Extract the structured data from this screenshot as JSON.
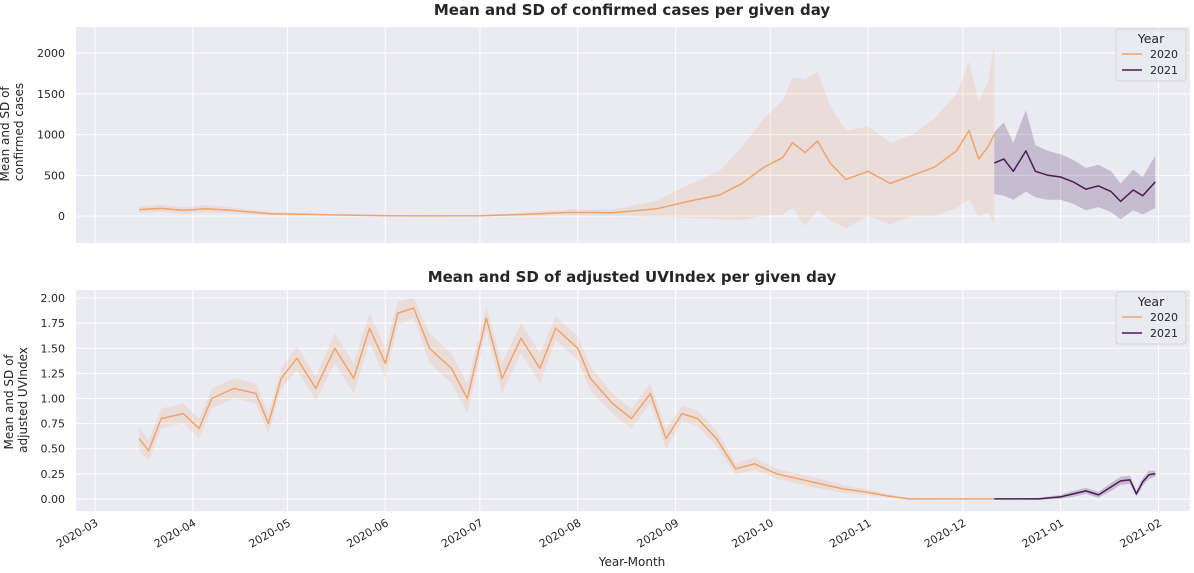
{
  "colors": {
    "y2020": "#f0a46c",
    "y2021": "#4b1d54",
    "axes_bg": "#eaeaf2",
    "grid": "#ffffff"
  },
  "xlabel": "Year-Month",
  "x_ticks": [
    "2020-03",
    "2020-04",
    "2020-05",
    "2020-06",
    "2020-07",
    "2020-08",
    "2020-09",
    "2020-10",
    "2020-11",
    "2020-12",
    "2021-01",
    "2021-02"
  ],
  "chart_data": [
    {
      "type": "line",
      "title": "Mean and SD of confirmed cases per given day",
      "ylabel": [
        "Mean and SD of",
        "confirmed cases"
      ],
      "ylim": [
        -330,
        2320
      ],
      "y_ticks": [
        "0",
        "500",
        "1000",
        "1500",
        "2000"
      ],
      "y_tick_values": [
        0,
        500,
        1000,
        1500,
        2000
      ],
      "xlim": [
        "2020-02-24",
        "2021-02-11"
      ],
      "grid": true,
      "legend": {
        "title": "Year",
        "placement": "top-right",
        "entries": [
          "2020",
          "2021"
        ]
      },
      "series": [
        {
          "name": "2020",
          "points": [
            {
              "x": "2020-03-15",
              "y": 80,
              "sd": 40
            },
            {
              "x": "2020-03-22",
              "y": 95,
              "sd": 45
            },
            {
              "x": "2020-03-29",
              "y": 70,
              "sd": 40
            },
            {
              "x": "2020-04-05",
              "y": 90,
              "sd": 45
            },
            {
              "x": "2020-04-12",
              "y": 75,
              "sd": 40
            },
            {
              "x": "2020-04-19",
              "y": 50,
              "sd": 30
            },
            {
              "x": "2020-04-26",
              "y": 30,
              "sd": 20
            },
            {
              "x": "2020-05-03",
              "y": 25,
              "sd": 15
            },
            {
              "x": "2020-05-15",
              "y": 15,
              "sd": 10
            },
            {
              "x": "2020-06-01",
              "y": 5,
              "sd": 8
            },
            {
              "x": "2020-06-15",
              "y": 3,
              "sd": 5
            },
            {
              "x": "2020-07-01",
              "y": 5,
              "sd": 8
            },
            {
              "x": "2020-07-15",
              "y": 20,
              "sd": 25
            },
            {
              "x": "2020-07-29",
              "y": 45,
              "sd": 40
            },
            {
              "x": "2020-08-12",
              "y": 40,
              "sd": 40
            },
            {
              "x": "2020-08-26",
              "y": 90,
              "sd": 100
            },
            {
              "x": "2020-09-05",
              "y": 180,
              "sd": 200
            },
            {
              "x": "2020-09-15",
              "y": 260,
              "sd": 300
            },
            {
              "x": "2020-09-22",
              "y": 400,
              "sd": 450
            },
            {
              "x": "2020-09-29",
              "y": 600,
              "sd": 600
            },
            {
              "x": "2020-10-05",
              "y": 720,
              "sd": 700
            },
            {
              "x": "2020-10-08",
              "y": 900,
              "sd": 800
            },
            {
              "x": "2020-10-12",
              "y": 780,
              "sd": 900
            },
            {
              "x": "2020-10-16",
              "y": 920,
              "sd": 850
            },
            {
              "x": "2020-10-20",
              "y": 650,
              "sd": 700
            },
            {
              "x": "2020-10-25",
              "y": 450,
              "sd": 600
            },
            {
              "x": "2020-11-01",
              "y": 550,
              "sd": 550
            },
            {
              "x": "2020-11-08",
              "y": 400,
              "sd": 500
            },
            {
              "x": "2020-11-15",
              "y": 500,
              "sd": 500
            },
            {
              "x": "2020-11-22",
              "y": 600,
              "sd": 600
            },
            {
              "x": "2020-11-29",
              "y": 800,
              "sd": 700
            },
            {
              "x": "2020-12-03",
              "y": 1050,
              "sd": 850
            },
            {
              "x": "2020-12-06",
              "y": 700,
              "sd": 700
            },
            {
              "x": "2020-12-09",
              "y": 850,
              "sd": 800
            },
            {
              "x": "2020-12-11",
              "y": 1000,
              "sd": 1100
            }
          ]
        },
        {
          "name": "2021",
          "points": [
            {
              "x": "2020-12-11",
              "y": 650,
              "sd": 380
            },
            {
              "x": "2020-12-14",
              "y": 700,
              "sd": 450
            },
            {
              "x": "2020-12-17",
              "y": 550,
              "sd": 350
            },
            {
              "x": "2020-12-21",
              "y": 800,
              "sd": 500
            },
            {
              "x": "2020-12-24",
              "y": 550,
              "sd": 320
            },
            {
              "x": "2020-12-28",
              "y": 500,
              "sd": 300
            },
            {
              "x": "2021-01-01",
              "y": 480,
              "sd": 280
            },
            {
              "x": "2021-01-05",
              "y": 420,
              "sd": 270
            },
            {
              "x": "2021-01-09",
              "y": 330,
              "sd": 260
            },
            {
              "x": "2021-01-13",
              "y": 370,
              "sd": 260
            },
            {
              "x": "2021-01-17",
              "y": 300,
              "sd": 250
            },
            {
              "x": "2021-01-20",
              "y": 180,
              "sd": 220
            },
            {
              "x": "2021-01-24",
              "y": 320,
              "sd": 250
            },
            {
              "x": "2021-01-27",
              "y": 250,
              "sd": 230
            },
            {
              "x": "2021-01-31",
              "y": 420,
              "sd": 320
            }
          ]
        }
      ]
    },
    {
      "type": "line",
      "title": "Mean and SD of adjusted UVIndex per given day",
      "ylabel": [
        "Mean and SD of",
        "adjusted UVIndex"
      ],
      "ylim": [
        -0.12,
        2.08
      ],
      "y_ticks": [
        "0.00",
        "0.25",
        "0.50",
        "0.75",
        "1.00",
        "1.25",
        "1.50",
        "1.75",
        "2.00"
      ],
      "y_tick_values": [
        0,
        0.25,
        0.5,
        0.75,
        1.0,
        1.25,
        1.5,
        1.75,
        2.0
      ],
      "xlim": [
        "2020-02-24",
        "2021-02-11"
      ],
      "grid": true,
      "legend": {
        "title": "Year",
        "placement": "top-right",
        "entries": [
          "2020",
          "2021"
        ]
      },
      "series": [
        {
          "name": "2020",
          "points": [
            {
              "x": "2020-03-15",
              "y": 0.6,
              "sd": 0.12
            },
            {
              "x": "2020-03-18",
              "y": 0.48,
              "sd": 0.1
            },
            {
              "x": "2020-03-22",
              "y": 0.8,
              "sd": 0.1
            },
            {
              "x": "2020-03-29",
              "y": 0.85,
              "sd": 0.1
            },
            {
              "x": "2020-04-03",
              "y": 0.7,
              "sd": 0.1
            },
            {
              "x": "2020-04-07",
              "y": 1.0,
              "sd": 0.1
            },
            {
              "x": "2020-04-14",
              "y": 1.1,
              "sd": 0.1
            },
            {
              "x": "2020-04-21",
              "y": 1.05,
              "sd": 0.1
            },
            {
              "x": "2020-04-25",
              "y": 0.75,
              "sd": 0.1
            },
            {
              "x": "2020-04-29",
              "y": 1.2,
              "sd": 0.1
            },
            {
              "x": "2020-05-04",
              "y": 1.4,
              "sd": 0.12
            },
            {
              "x": "2020-05-10",
              "y": 1.1,
              "sd": 0.12
            },
            {
              "x": "2020-05-16",
              "y": 1.5,
              "sd": 0.15
            },
            {
              "x": "2020-05-22",
              "y": 1.2,
              "sd": 0.15
            },
            {
              "x": "2020-05-27",
              "y": 1.7,
              "sd": 0.15
            },
            {
              "x": "2020-06-01",
              "y": 1.35,
              "sd": 0.15
            },
            {
              "x": "2020-06-05",
              "y": 1.85,
              "sd": 0.12
            },
            {
              "x": "2020-06-10",
              "y": 1.9,
              "sd": 0.1
            },
            {
              "x": "2020-06-15",
              "y": 1.5,
              "sd": 0.15
            },
            {
              "x": "2020-06-22",
              "y": 1.3,
              "sd": 0.15
            },
            {
              "x": "2020-06-27",
              "y": 1.0,
              "sd": 0.15
            },
            {
              "x": "2020-07-03",
              "y": 1.8,
              "sd": 0.12
            },
            {
              "x": "2020-07-08",
              "y": 1.2,
              "sd": 0.15
            },
            {
              "x": "2020-07-14",
              "y": 1.6,
              "sd": 0.15
            },
            {
              "x": "2020-07-20",
              "y": 1.3,
              "sd": 0.15
            },
            {
              "x": "2020-07-25",
              "y": 1.7,
              "sd": 0.12
            },
            {
              "x": "2020-08-01",
              "y": 1.5,
              "sd": 0.12
            },
            {
              "x": "2020-08-05",
              "y": 1.2,
              "sd": 0.12
            },
            {
              "x": "2020-08-12",
              "y": 0.95,
              "sd": 0.1
            },
            {
              "x": "2020-08-18",
              "y": 0.8,
              "sd": 0.1
            },
            {
              "x": "2020-08-24",
              "y": 1.05,
              "sd": 0.1
            },
            {
              "x": "2020-08-29",
              "y": 0.6,
              "sd": 0.1
            },
            {
              "x": "2020-09-03",
              "y": 0.85,
              "sd": 0.08
            },
            {
              "x": "2020-09-08",
              "y": 0.8,
              "sd": 0.08
            },
            {
              "x": "2020-09-14",
              "y": 0.6,
              "sd": 0.08
            },
            {
              "x": "2020-09-20",
              "y": 0.3,
              "sd": 0.06
            },
            {
              "x": "2020-09-26",
              "y": 0.35,
              "sd": 0.06
            },
            {
              "x": "2020-10-03",
              "y": 0.25,
              "sd": 0.05
            },
            {
              "x": "2020-10-10",
              "y": 0.2,
              "sd": 0.05
            },
            {
              "x": "2020-10-17",
              "y": 0.15,
              "sd": 0.05
            },
            {
              "x": "2020-10-24",
              "y": 0.1,
              "sd": 0.04
            },
            {
              "x": "2020-10-31",
              "y": 0.07,
              "sd": 0.03
            },
            {
              "x": "2020-11-07",
              "y": 0.03,
              "sd": 0.02
            },
            {
              "x": "2020-11-14",
              "y": 0.0,
              "sd": 0.01
            },
            {
              "x": "2020-12-11",
              "y": 0.0,
              "sd": 0.0
            }
          ]
        },
        {
          "name": "2021",
          "points": [
            {
              "x": "2020-12-11",
              "y": 0.0,
              "sd": 0.0
            },
            {
              "x": "2020-12-25",
              "y": 0.0,
              "sd": 0.01
            },
            {
              "x": "2021-01-01",
              "y": 0.02,
              "sd": 0.02
            },
            {
              "x": "2021-01-05",
              "y": 0.05,
              "sd": 0.03
            },
            {
              "x": "2021-01-09",
              "y": 0.08,
              "sd": 0.03
            },
            {
              "x": "2021-01-13",
              "y": 0.04,
              "sd": 0.03
            },
            {
              "x": "2021-01-17",
              "y": 0.12,
              "sd": 0.04
            },
            {
              "x": "2021-01-20",
              "y": 0.18,
              "sd": 0.04
            },
            {
              "x": "2021-01-23",
              "y": 0.19,
              "sd": 0.04
            },
            {
              "x": "2021-01-25",
              "y": 0.05,
              "sd": 0.03
            },
            {
              "x": "2021-01-27",
              "y": 0.17,
              "sd": 0.04
            },
            {
              "x": "2021-01-29",
              "y": 0.24,
              "sd": 0.04
            },
            {
              "x": "2021-01-31",
              "y": 0.25,
              "sd": 0.03
            }
          ]
        }
      ]
    }
  ]
}
